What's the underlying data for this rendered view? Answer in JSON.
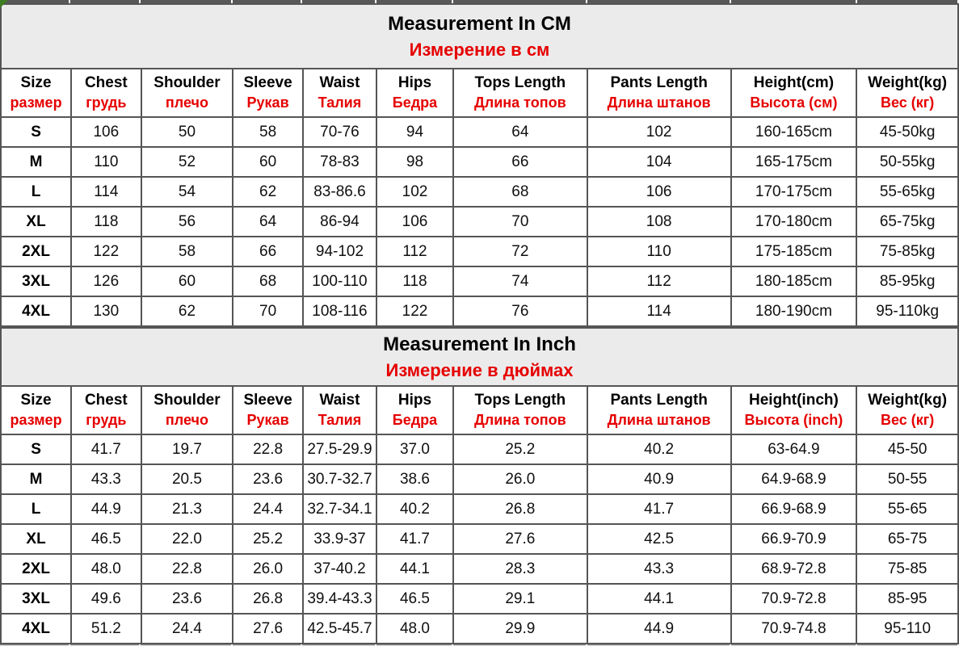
{
  "colors": {
    "accent_red": "#e60000",
    "title_background": "#ebebeb",
    "border_gray": "#555555",
    "corner_green": "#3f7d23"
  },
  "sections": [
    {
      "id": "cm",
      "title_en": "Measurement In CM",
      "title_ru": "Измерение в см",
      "columns": [
        {
          "en": "Size",
          "ru": "размер"
        },
        {
          "en": "Chest",
          "ru": "грудь"
        },
        {
          "en": "Shoulder",
          "ru": "плечо"
        },
        {
          "en": "Sleeve",
          "ru": "Рукав"
        },
        {
          "en": "Waist",
          "ru": "Талия"
        },
        {
          "en": "Hips",
          "ru": "Бедра"
        },
        {
          "en": "Tops Length",
          "ru": "Длина топов"
        },
        {
          "en": "Pants Length",
          "ru": "Длина штанов"
        },
        {
          "en": "Height(cm)",
          "ru": "Высота (см)"
        },
        {
          "en": "Weight(kg)",
          "ru": "Вес (кг)"
        }
      ],
      "rows": [
        [
          "S",
          "106",
          "50",
          "58",
          "70-76",
          "94",
          "64",
          "102",
          "160-165cm",
          "45-50kg"
        ],
        [
          "M",
          "110",
          "52",
          "60",
          "78-83",
          "98",
          "66",
          "104",
          "165-175cm",
          "50-55kg"
        ],
        [
          "L",
          "114",
          "54",
          "62",
          "83-86.6",
          "102",
          "68",
          "106",
          "170-175cm",
          "55-65kg"
        ],
        [
          "XL",
          "118",
          "56",
          "64",
          "86-94",
          "106",
          "70",
          "108",
          "170-180cm",
          "65-75kg"
        ],
        [
          "2XL",
          "122",
          "58",
          "66",
          "94-102",
          "112",
          "72",
          "110",
          "175-185cm",
          "75-85kg"
        ],
        [
          "3XL",
          "126",
          "60",
          "68",
          "100-110",
          "118",
          "74",
          "112",
          "180-185cm",
          "85-95kg"
        ],
        [
          "4XL",
          "130",
          "62",
          "70",
          "108-116",
          "122",
          "76",
          "114",
          "180-190cm",
          "95-110kg"
        ]
      ]
    },
    {
      "id": "inch",
      "title_en": "Measurement In Inch",
      "title_ru": "Измерение в дюймах",
      "columns": [
        {
          "en": "Size",
          "ru": "размер"
        },
        {
          "en": "Chest",
          "ru": "грудь"
        },
        {
          "en": "Shoulder",
          "ru": "плечо"
        },
        {
          "en": "Sleeve",
          "ru": "Рукав"
        },
        {
          "en": "Waist",
          "ru": "Талия"
        },
        {
          "en": "Hips",
          "ru": "Бедра"
        },
        {
          "en": "Tops Length",
          "ru": "Длина топов"
        },
        {
          "en": "Pants Length",
          "ru": "Длина штанов"
        },
        {
          "en": "Height(inch)",
          "ru": "Высота (inch)"
        },
        {
          "en": "Weight(kg)",
          "ru": "Вес (кг)"
        }
      ],
      "rows": [
        [
          "S",
          "41.7",
          "19.7",
          "22.8",
          "27.5-29.9",
          "37.0",
          "25.2",
          "40.2",
          "63-64.9",
          "45-50"
        ],
        [
          "M",
          "43.3",
          "20.5",
          "23.6",
          "30.7-32.7",
          "38.6",
          "26.0",
          "40.9",
          "64.9-68.9",
          "50-55"
        ],
        [
          "L",
          "44.9",
          "21.3",
          "24.4",
          "32.7-34.1",
          "40.2",
          "26.8",
          "41.7",
          "66.9-68.9",
          "55-65"
        ],
        [
          "XL",
          "46.5",
          "22.0",
          "25.2",
          "33.9-37",
          "41.7",
          "27.6",
          "42.5",
          "66.9-70.9",
          "65-75"
        ],
        [
          "2XL",
          "48.0",
          "22.8",
          "26.0",
          "37-40.2",
          "44.1",
          "28.3",
          "43.3",
          "68.9-72.8",
          "75-85"
        ],
        [
          "3XL",
          "49.6",
          "23.6",
          "26.8",
          "39.4-43.3",
          "46.5",
          "29.1",
          "44.1",
          "70.9-72.8",
          "85-95"
        ],
        [
          "4XL",
          "51.2",
          "24.4",
          "27.6",
          "42.5-45.7",
          "48.0",
          "29.9",
          "44.9",
          "70.9-74.8",
          "95-110"
        ]
      ]
    }
  ]
}
